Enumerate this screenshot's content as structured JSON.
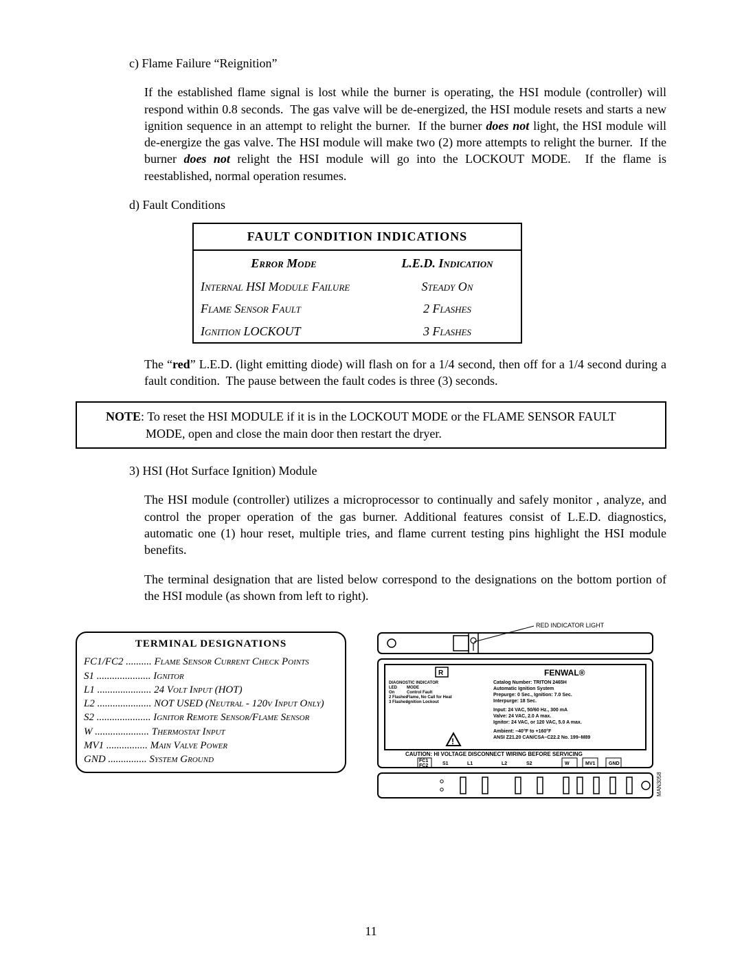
{
  "section_c": {
    "label": "c) Flame Failure \"Reignition\"",
    "body": "If the established flame signal is lost while the burner is operating, the HSI module (controller) will respond within 0.8 seconds.  The gas valve will be de-energized, the HSI module resets and starts a new ignition sequence in an attempt to relight the burner.  If the burner does not light, the HSI module will de-energize the gas valve.  The HSI module will make two (2) more attempts to relight the burner.  If the burner does not relight the HSI module will go into the LOCKOUT MODE.  If the flame is reestablished, normal operation resumes."
  },
  "section_d": {
    "label": "d) Fault Conditions"
  },
  "fault_table": {
    "title": "FAULT CONDITION INDICATIONS",
    "headers": {
      "left": "Error Mode",
      "right": "L.E.D. Indication"
    },
    "rows": [
      {
        "left": "Internal HSI Module Failure",
        "right": "Steady On"
      },
      {
        "left": "Flame Sensor Fault",
        "right": "2 Flashes"
      },
      {
        "left": "Ignition LOCKOUT",
        "right": "3 Flashes"
      }
    ],
    "border_color": "#000000",
    "background_color": "#ffffff"
  },
  "led_paragraph": "The \"red\" L.E.D. (light emitting diode) will flash on for a 1/4 second, then off for a 1/4 second during a fault condition.  The pause between the fault codes is three (3) seconds.",
  "note_box": {
    "label": "NOTE",
    "text": ":  To reset the HSI MODULE if it is in the LOCKOUT MODE or the FLAME SENSOR FAULT MODE, open and close the main door then restart the dryer."
  },
  "section_3": {
    "label": "3)  HSI (Hot Surface Ignition) Module",
    "body1": "The HSI module (controller) utilizes a microprocessor to continually and safely monitor , analyze, and control the proper operation of the gas burner.  Additional features consist of L.E.D. diagnostics, automatic one (1) hour reset, multiple tries, and flame current testing pins highlight the HSI module benefits.",
    "body2": "The terminal designation that are listed below correspond to the designations on the bottom portion of the HSI module (as shown from left to right)."
  },
  "terminal_box": {
    "title": "TERMINAL DESIGNATIONS",
    "rows": [
      {
        "code": "FC1/FC2",
        "dots": "..........",
        "desc": "Flame Sensor Current Check Points"
      },
      {
        "code": "S1",
        "dots": ".....................",
        "desc": "Ignitor"
      },
      {
        "code": "L1",
        "dots": ".....................",
        "desc": "24 Volt Input (HOT)"
      },
      {
        "code": "L2",
        "dots": ".....................",
        "desc": "NOT USED (Neutral - 120v Input Only)"
      },
      {
        "code": "S2",
        "dots": ".....................",
        "desc": "Ignitor Remote Sensor/Flame Sensor"
      },
      {
        "code": "W",
        "dots": ".....................",
        "desc": "Thermostat Input"
      },
      {
        "code": "MV1",
        "dots": "................",
        "desc": "Main Valve Power"
      },
      {
        "code": "GND",
        "dots": "...............",
        "desc": "System Ground"
      }
    ]
  },
  "diagram": {
    "callout": "RED INDICATOR LIGHT",
    "brand": "FENWAL®",
    "spec_lines": [
      "Catalog Number: TRITON 2465H",
      "Automatic Ignition System",
      "Prepurge: 0 Sec., Ignition: 7.0 Sec.",
      "Interpurge: 18 Sec.",
      "",
      "Input: 24 VAC, 50/60 Hz., 300 mA",
      "Valve: 24 VAC, 2.0 A max.",
      "Ignitor: 24 VAC, or 120 VAC, 5.0 A max.",
      "",
      "Ambient: –40°F to +160°F",
      "ANSI Z21.20 CAN/CSA–C22.2 No. 199–M89"
    ],
    "caution": "CAUTION: HI VOLTAGE  DISCONNECT WIRING BEFORE SERVICING",
    "diag_heading": "DIAGNOSTIC INDICATOR",
    "diag_cols": [
      "LED",
      "MODE"
    ],
    "diag_rows": [
      [
        "On",
        "Control Fault"
      ],
      [
        "2 Flashes",
        "Flame, No Call for Heat"
      ],
      [
        "3 Flashes",
        "Ignition Lockout"
      ]
    ],
    "terminals_top": [
      "FC1",
      "FC2"
    ],
    "terminals": [
      "S1",
      "L1",
      "L2",
      "S2",
      "W",
      "MV1",
      "GND"
    ],
    "side_label": "MAN3058"
  },
  "page_number": "11",
  "colors": {
    "text": "#000000",
    "background": "#ffffff",
    "border": "#000000"
  }
}
